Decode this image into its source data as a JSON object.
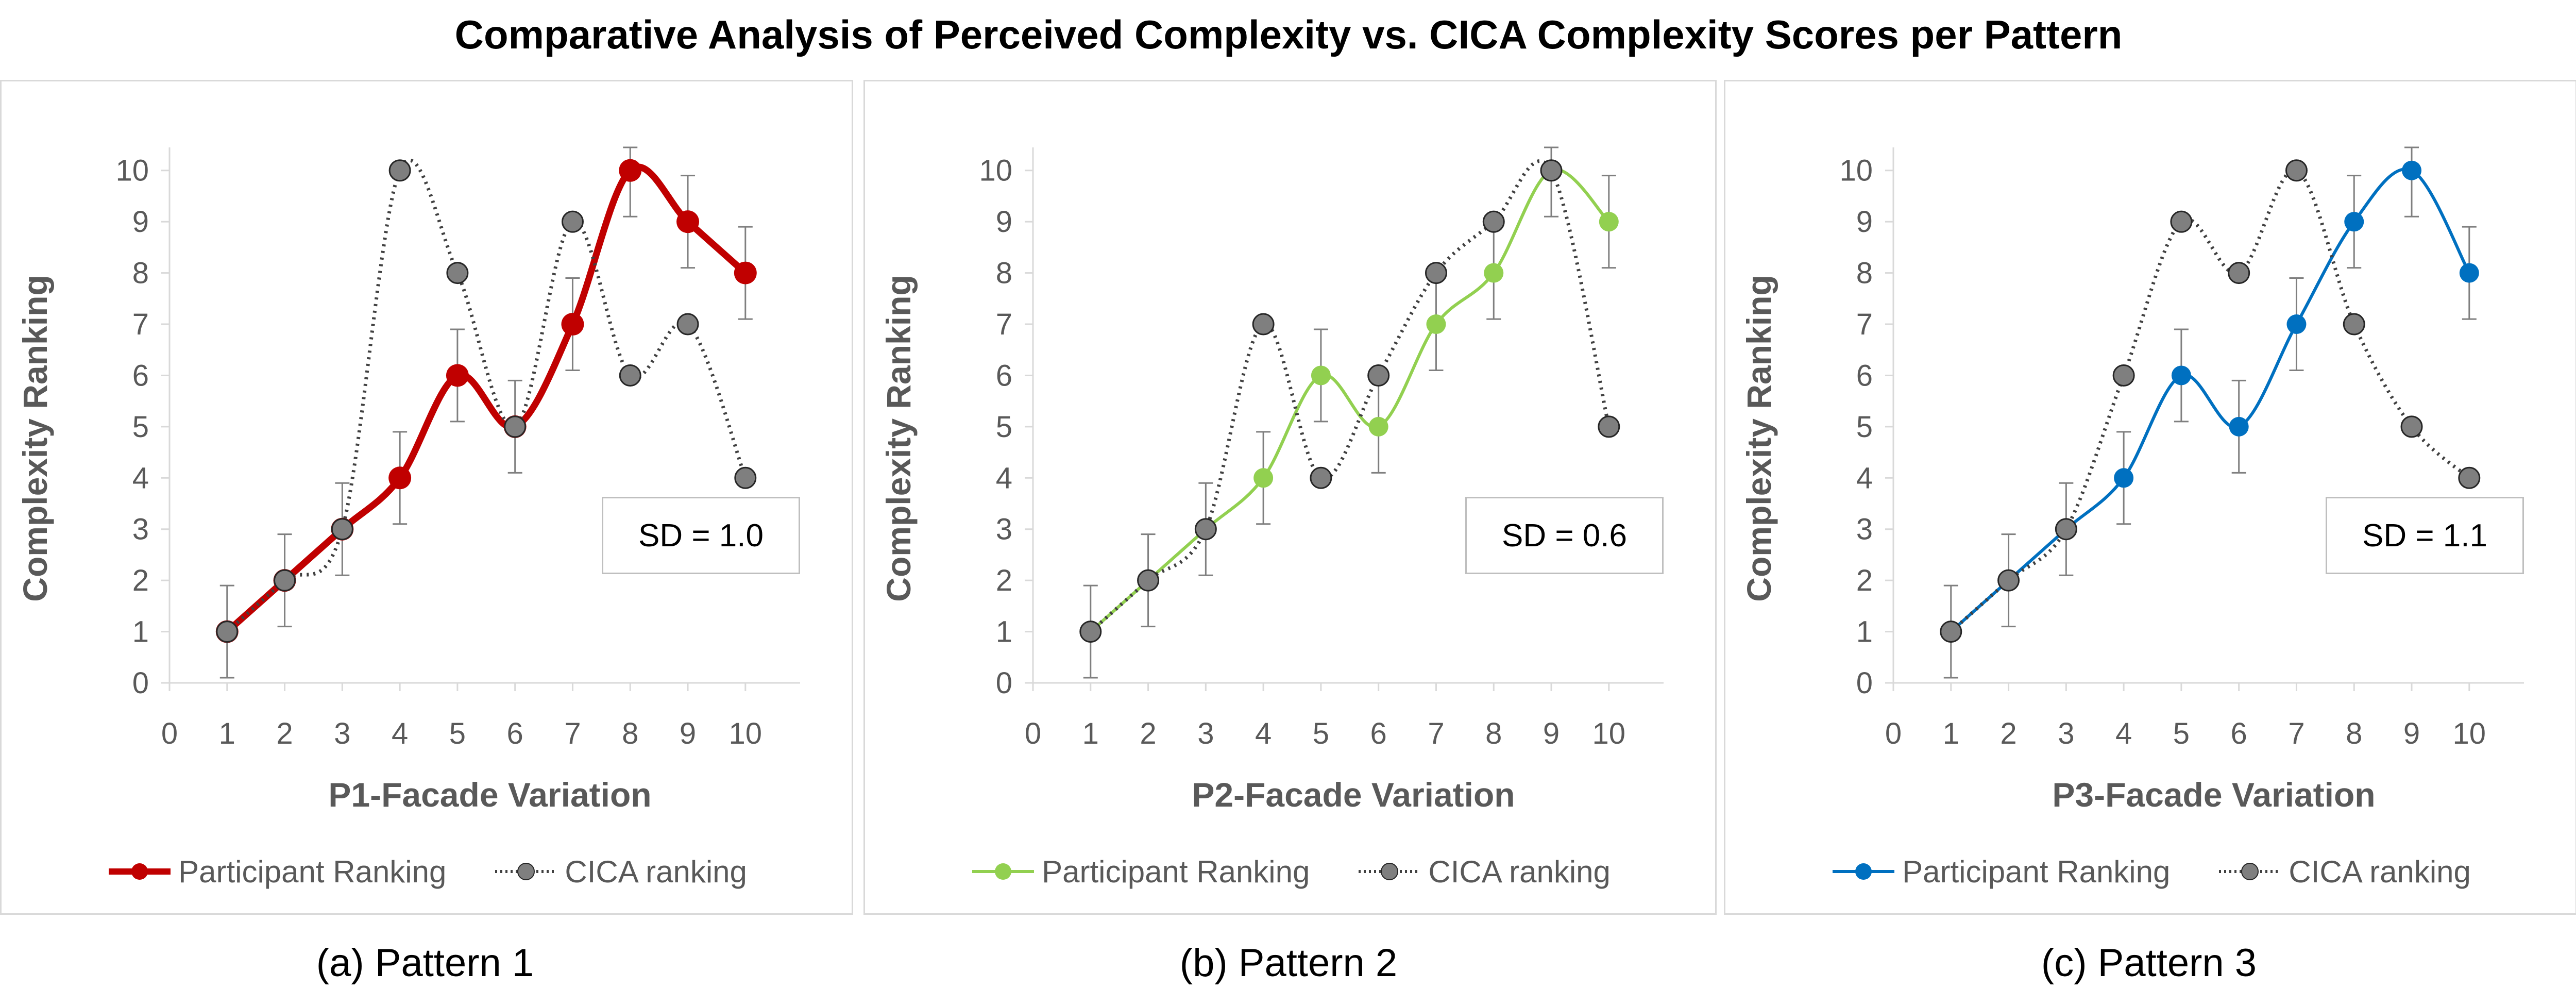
{
  "title": "Comparative Analysis of Perceived Complexity vs. CICA Complexity Scores per Pattern",
  "colors": {
    "pattern1": "#c00000",
    "pattern2": "#92d050",
    "pattern3": "#0070c0",
    "cica": "#404040",
    "cica_marker": "#7f7f7f",
    "error_bar": "#7f7f7f",
    "axis_text": "#595959"
  },
  "legend_labels": {
    "participant": "Participant Ranking",
    "cica": "CICA ranking"
  },
  "chart_data": [
    {
      "type": "line",
      "caption": "(a) Pattern 1",
      "xlabel": "P1-Facade Variation",
      "ylabel": "Complexity Ranking",
      "sd_label": "SD = 1.0",
      "xlim": [
        0,
        10
      ],
      "ylim": [
        0,
        10
      ],
      "x_ticks": [
        0,
        1,
        2,
        3,
        4,
        5,
        6,
        7,
        8,
        9,
        10
      ],
      "y_ticks": [
        0,
        1,
        2,
        3,
        4,
        5,
        6,
        7,
        8,
        9,
        10
      ],
      "x": [
        1,
        2,
        3,
        4,
        5,
        6,
        7,
        8,
        9,
        10
      ],
      "series": [
        {
          "name": "Participant Ranking",
          "values": [
            1,
            2,
            3,
            4,
            6,
            5,
            7,
            10,
            9,
            8
          ],
          "error": 0.9,
          "color": "#c00000",
          "style": "solid-thick"
        },
        {
          "name": "CICA ranking",
          "values": [
            1,
            2,
            3,
            10,
            8,
            5,
            9,
            6,
            7,
            4
          ],
          "color": "#404040",
          "style": "dotted"
        }
      ],
      "grid": false,
      "legend_position": "bottom"
    },
    {
      "type": "line",
      "caption": "(b) Pattern 2",
      "xlabel": "P2-Facade Variation",
      "ylabel": "Complexity Ranking",
      "sd_label": "SD = 0.6",
      "xlim": [
        0,
        10
      ],
      "ylim": [
        0,
        10
      ],
      "x_ticks": [
        0,
        1,
        2,
        3,
        4,
        5,
        6,
        7,
        8,
        9,
        10
      ],
      "y_ticks": [
        0,
        1,
        2,
        3,
        4,
        5,
        6,
        7,
        8,
        9,
        10
      ],
      "x": [
        1,
        2,
        3,
        4,
        5,
        6,
        7,
        8,
        9,
        10
      ],
      "series": [
        {
          "name": "Participant Ranking",
          "values": [
            1,
            2,
            3,
            4,
            6,
            5,
            7,
            8,
            10,
            9
          ],
          "error": 0.9,
          "color": "#92d050",
          "style": "solid"
        },
        {
          "name": "CICA ranking",
          "values": [
            1,
            2,
            3,
            7,
            4,
            6,
            8,
            9,
            10,
            5
          ],
          "color": "#404040",
          "style": "dotted"
        }
      ],
      "grid": false,
      "legend_position": "bottom"
    },
    {
      "type": "line",
      "caption": "(c) Pattern 3",
      "xlabel": "P3-Facade Variation",
      "ylabel": "Complexity Ranking",
      "sd_label": "SD = 1.1",
      "xlim": [
        0,
        10
      ],
      "ylim": [
        0,
        10
      ],
      "x_ticks": [
        0,
        1,
        2,
        3,
        4,
        5,
        6,
        7,
        8,
        9,
        10
      ],
      "y_ticks": [
        0,
        1,
        2,
        3,
        4,
        5,
        6,
        7,
        8,
        9,
        10
      ],
      "x": [
        1,
        2,
        3,
        4,
        5,
        6,
        7,
        8,
        9,
        10
      ],
      "series": [
        {
          "name": "Participant Ranking",
          "values": [
            1,
            2,
            3,
            4,
            6,
            5,
            7,
            9,
            10,
            8
          ],
          "error": 0.9,
          "color": "#0070c0",
          "style": "solid"
        },
        {
          "name": "CICA ranking",
          "values": [
            1,
            2,
            3,
            6,
            9,
            8,
            10,
            7,
            5,
            4
          ],
          "color": "#404040",
          "style": "dotted"
        }
      ],
      "grid": false,
      "legend_position": "bottom"
    }
  ]
}
